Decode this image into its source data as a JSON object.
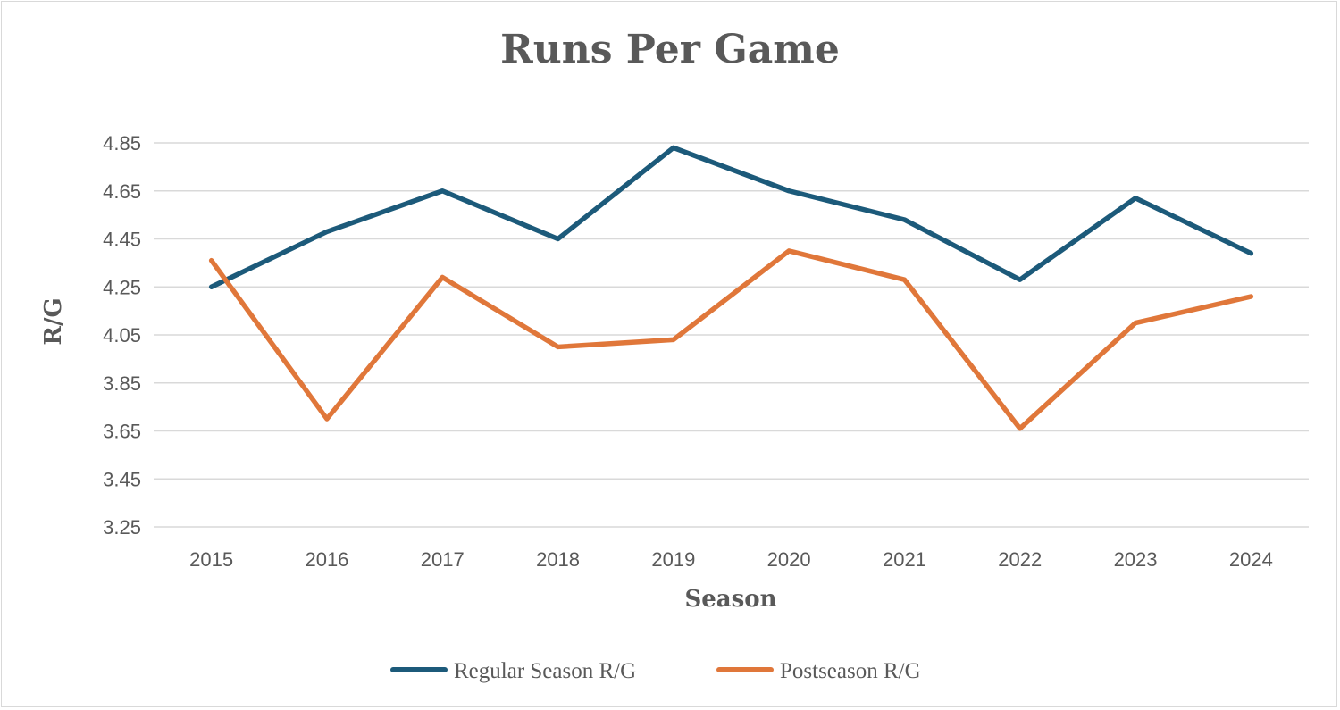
{
  "chart_data": {
    "type": "line",
    "title": "Runs Per Game",
    "xlabel": "Season",
    "ylabel": "R/G",
    "categories": [
      "2015",
      "2016",
      "2017",
      "2018",
      "2019",
      "2020",
      "2021",
      "2022",
      "2023",
      "2024"
    ],
    "ylim": [
      3.25,
      4.85
    ],
    "yticks": [
      "3.25",
      "3.45",
      "3.65",
      "3.85",
      "4.05",
      "4.25",
      "4.45",
      "4.65",
      "4.85"
    ],
    "grid": true,
    "legend_position": "bottom",
    "series": [
      {
        "name": "Regular Season R/G",
        "color": "#1c5a7a",
        "values": [
          4.25,
          4.48,
          4.65,
          4.45,
          4.83,
          4.65,
          4.53,
          4.28,
          4.62,
          4.39
        ]
      },
      {
        "name": "Postseason R/G",
        "color": "#e0773a",
        "values": [
          4.36,
          3.7,
          4.29,
          4.0,
          4.03,
          4.4,
          4.28,
          3.66,
          4.1,
          4.21
        ]
      }
    ]
  }
}
